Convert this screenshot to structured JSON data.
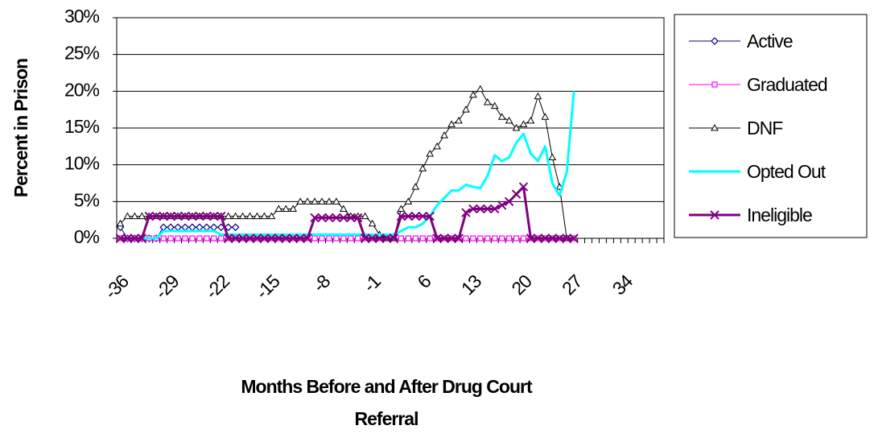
{
  "chart_data": {
    "type": "line",
    "ylabel": "Percent in Prison",
    "xlabel": [
      "Months Before and After Drug Court",
      "Referral"
    ],
    "categories": [
      -36,
      null,
      null,
      null,
      null,
      null,
      null,
      -29,
      null,
      null,
      null,
      null,
      null,
      null,
      -22,
      null,
      null,
      null,
      null,
      null,
      null,
      -15,
      null,
      null,
      null,
      null,
      null,
      null,
      -8,
      null,
      null,
      null,
      null,
      null,
      null,
      -1,
      null,
      null,
      null,
      null,
      null,
      null,
      6,
      null,
      null,
      null,
      null,
      null,
      null,
      13,
      null,
      null,
      null,
      null,
      null,
      null,
      20,
      null,
      null,
      null,
      null,
      null,
      null,
      27,
      null,
      null,
      null,
      null,
      null,
      null,
      34,
      null,
      null,
      null,
      null,
      null
    ],
    "ylim": [
      0,
      30
    ],
    "yticks": [
      {
        "value": 0,
        "label": "0%"
      },
      {
        "value": 5,
        "label": "5%"
      },
      {
        "value": 10,
        "label": "10%"
      },
      {
        "value": 15,
        "label": "15%"
      },
      {
        "value": 20,
        "label": "20%"
      },
      {
        "value": 25,
        "label": "25%"
      },
      {
        "value": 30,
        "label": "30%"
      }
    ],
    "grid": true,
    "legend": "right",
    "series": [
      {
        "name": "Active",
        "color": "#000080",
        "marker": "diamond",
        "values": [
          1.5,
          0,
          0,
          0,
          0,
          0,
          1.5,
          1.5,
          1.5,
          1.5,
          1.5,
          1.5,
          1.5,
          1.5,
          1.5,
          1.5,
          1.5,
          null,
          null,
          null,
          null,
          null,
          null,
          null,
          null,
          null,
          null,
          null,
          null,
          null,
          null,
          null,
          null,
          null,
          null,
          null,
          null,
          null,
          null,
          null,
          null,
          null,
          null,
          null,
          null,
          null,
          null,
          null,
          null,
          null,
          null,
          null,
          null,
          null,
          null,
          null,
          null,
          null,
          null,
          null,
          null,
          null,
          null,
          null,
          null,
          null,
          null,
          null,
          null,
          null,
          null,
          null,
          null,
          null,
          null,
          null
        ]
      },
      {
        "name": "Graduated",
        "color": "#ff00ff",
        "marker": "square",
        "values": [
          0,
          0,
          0,
          0,
          0,
          0,
          0,
          0,
          0,
          0,
          0,
          0,
          0,
          0,
          0,
          0,
          0,
          0,
          0,
          0,
          0,
          0,
          0,
          0,
          0,
          0,
          0,
          0,
          0,
          0,
          0,
          0,
          0,
          0,
          0,
          0,
          0,
          0,
          0,
          0,
          0,
          0,
          0,
          0,
          0,
          0,
          0,
          0,
          0,
          0,
          0,
          0,
          0,
          0,
          0,
          0,
          0,
          0,
          0,
          0,
          0,
          0,
          0,
          0,
          null,
          null,
          null,
          null,
          null,
          null,
          null,
          null,
          null,
          null,
          null,
          null
        ]
      },
      {
        "name": "DNF",
        "color": "#000000",
        "marker": "triangle",
        "values": [
          2,
          3,
          3,
          3,
          3,
          3,
          3,
          3,
          3,
          3,
          3,
          3,
          3,
          3,
          3,
          3,
          3,
          3,
          3,
          3,
          3,
          3,
          4,
          4,
          4,
          5,
          5,
          5,
          5,
          5,
          5,
          4,
          3,
          3,
          3,
          2,
          0.5,
          0,
          0,
          4,
          5,
          7,
          9.5,
          11.5,
          12.5,
          14,
          15.5,
          16,
          17.5,
          19.5,
          20.3,
          18.5,
          18,
          16.5,
          16,
          15,
          15.5,
          16,
          19.3,
          16.5,
          11,
          7,
          0,
          null,
          null,
          null,
          null,
          null,
          null,
          null,
          null,
          null,
          null,
          null,
          null,
          null
        ]
      },
      {
        "name": "Opted Out",
        "color": "#00ffff",
        "marker": "none",
        "values": [
          0,
          0,
          0,
          0,
          0,
          0,
          1,
          1,
          1,
          1,
          1,
          1,
          1,
          1,
          0.5,
          0.5,
          0.5,
          0.5,
          0.5,
          0.5,
          0.5,
          0.5,
          0.5,
          0.5,
          0.5,
          0.5,
          0.5,
          0.5,
          0.5,
          0.5,
          0.5,
          0.5,
          0.5,
          0.5,
          0.5,
          0.5,
          0.5,
          0.5,
          0.5,
          1,
          1.5,
          1.5,
          2,
          3,
          4.5,
          5.5,
          6.5,
          6.5,
          7.3,
          7,
          6.8,
          8.5,
          11.3,
          10.5,
          11,
          13,
          14.2,
          11.5,
          10.5,
          12.5,
          7.5,
          5.8,
          9,
          20,
          null,
          null,
          null,
          null,
          null,
          null,
          null,
          null,
          null,
          null,
          null,
          null
        ]
      },
      {
        "name": "Ineligible",
        "color": "#800080",
        "marker": "x",
        "values": [
          0,
          0,
          0,
          0,
          3,
          3,
          3,
          3,
          3,
          3,
          3,
          3,
          3,
          3,
          3,
          0,
          0,
          0,
          0,
          0,
          0,
          0,
          0,
          0,
          0,
          0,
          0,
          2.8,
          2.8,
          2.8,
          2.8,
          2.8,
          2.8,
          2.8,
          0,
          0,
          0,
          0,
          0,
          3,
          3,
          3,
          3,
          3,
          0,
          0,
          0,
          0,
          3.5,
          4,
          4,
          4,
          4,
          4.5,
          5,
          6,
          7,
          0,
          0,
          0,
          0,
          0,
          0,
          0,
          null,
          null,
          null,
          null,
          null,
          null,
          null,
          null,
          null,
          null,
          null,
          null
        ]
      }
    ]
  }
}
